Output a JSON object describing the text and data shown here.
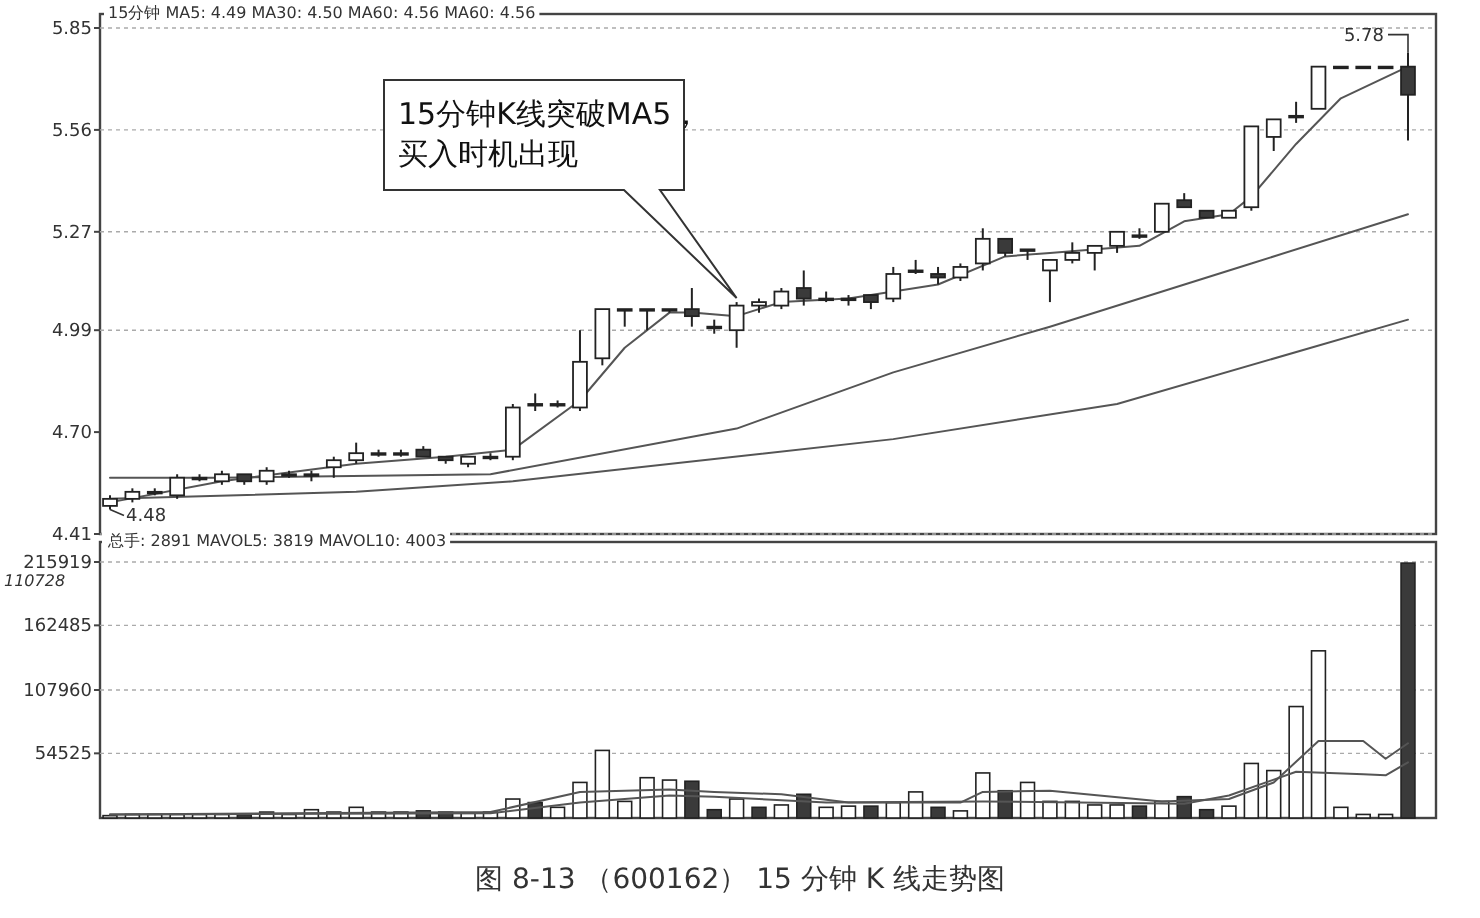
{
  "chart_data": [
    {
      "type": "candlestick",
      "categories": [
        null,
        null,
        null,
        null,
        null,
        null,
        null,
        null,
        null,
        null,
        null,
        null,
        null,
        null,
        null,
        null,
        null,
        null,
        null,
        null,
        null,
        null,
        null,
        null,
        null,
        null,
        null,
        null,
        null,
        null,
        null,
        null,
        null,
        null,
        null,
        null,
        null,
        null,
        null,
        null,
        null,
        null,
        null,
        null,
        null,
        null,
        null,
        null,
        null,
        null,
        null,
        null,
        null,
        null,
        null,
        null,
        null,
        null,
        null
      ],
      "ohlc": [
        [
          4.49,
          4.52,
          4.48,
          4.51
        ],
        [
          4.51,
          4.54,
          4.5,
          4.53
        ],
        [
          4.53,
          4.54,
          4.52,
          4.53
        ],
        [
          4.52,
          4.58,
          4.51,
          4.57
        ],
        [
          4.57,
          4.58,
          4.56,
          4.57
        ],
        [
          4.56,
          4.59,
          4.55,
          4.58
        ],
        [
          4.58,
          4.58,
          4.55,
          4.56
        ],
        [
          4.56,
          4.6,
          4.55,
          4.59
        ],
        [
          4.58,
          4.59,
          4.57,
          4.58
        ],
        [
          4.58,
          4.59,
          4.56,
          4.58
        ],
        [
          4.6,
          4.63,
          4.57,
          4.62
        ],
        [
          4.62,
          4.67,
          4.61,
          4.64
        ],
        [
          4.64,
          4.65,
          4.63,
          4.64
        ],
        [
          4.64,
          4.65,
          4.63,
          4.64
        ],
        [
          4.65,
          4.66,
          4.63,
          4.63
        ],
        [
          4.63,
          4.63,
          4.61,
          4.62
        ],
        [
          4.61,
          4.63,
          4.6,
          4.63
        ],
        [
          4.63,
          4.64,
          4.62,
          4.63
        ],
        [
          4.63,
          4.78,
          4.62,
          4.77
        ],
        [
          4.78,
          4.81,
          4.76,
          4.78
        ],
        [
          4.78,
          4.79,
          4.77,
          4.78
        ],
        [
          4.77,
          4.99,
          4.76,
          4.9
        ],
        [
          4.91,
          5.05,
          4.89,
          5.05
        ],
        [
          5.05,
          5.05,
          5.0,
          5.05
        ],
        [
          5.05,
          5.05,
          4.99,
          5.05
        ],
        [
          5.05,
          5.05,
          5.04,
          5.05
        ],
        [
          5.05,
          5.11,
          5.0,
          5.03
        ],
        [
          5.0,
          5.02,
          4.98,
          5.0
        ],
        [
          4.99,
          5.07,
          4.94,
          5.06
        ],
        [
          5.06,
          5.08,
          5.04,
          5.07
        ],
        [
          5.06,
          5.11,
          5.05,
          5.1
        ],
        [
          5.11,
          5.16,
          5.06,
          5.08
        ],
        [
          5.08,
          5.1,
          5.07,
          5.08
        ],
        [
          5.08,
          5.09,
          5.06,
          5.08
        ],
        [
          5.09,
          5.09,
          5.05,
          5.07
        ],
        [
          5.08,
          5.17,
          5.07,
          5.15
        ],
        [
          5.16,
          5.19,
          5.15,
          5.16
        ],
        [
          5.15,
          5.17,
          5.12,
          5.14
        ],
        [
          5.14,
          5.18,
          5.13,
          5.17
        ],
        [
          5.18,
          5.28,
          5.16,
          5.25
        ],
        [
          5.25,
          5.25,
          5.2,
          5.21
        ],
        [
          5.22,
          5.22,
          5.19,
          5.22
        ],
        [
          5.16,
          5.19,
          5.07,
          5.19
        ],
        [
          5.19,
          5.24,
          5.18,
          5.21
        ],
        [
          5.21,
          5.23,
          5.16,
          5.23
        ],
        [
          5.23,
          5.27,
          5.21,
          5.27
        ],
        [
          5.26,
          5.28,
          5.25,
          5.26
        ],
        [
          5.27,
          5.35,
          5.27,
          5.35
        ],
        [
          5.36,
          5.38,
          5.34,
          5.34
        ],
        [
          5.33,
          5.33,
          5.31,
          5.31
        ],
        [
          5.31,
          5.33,
          5.31,
          5.33
        ],
        [
          5.34,
          5.57,
          5.33,
          5.57
        ],
        [
          5.54,
          5.59,
          5.5,
          5.59
        ],
        [
          5.6,
          5.64,
          5.58,
          5.6
        ],
        [
          5.62,
          5.74,
          5.62,
          5.74
        ],
        [
          5.74,
          5.74,
          5.74,
          5.74
        ],
        [
          5.74,
          5.74,
          5.74,
          5.74
        ],
        [
          5.74,
          5.74,
          5.74,
          5.74
        ],
        [
          5.74,
          5.78,
          5.53,
          5.66
        ]
      ],
      "series": [
        {
          "type": "line",
          "color": "#555555",
          "values": [
            4.5,
            null,
            null,
            null,
            null,
            4.56,
            null,
            null,
            null,
            null,
            null,
            4.61,
            null,
            null,
            null,
            4.63,
            null,
            null,
            4.65,
            null,
            null,
            4.79,
            null,
            4.94,
            null,
            5.04,
            5.04,
            null,
            5.03,
            null,
            5.07,
            null,
            null,
            5.08,
            null,
            null,
            null,
            5.12,
            null,
            null,
            5.2,
            null,
            5.21,
            null,
            null,
            null,
            5.23,
            null,
            5.3,
            null,
            5.32,
            5.37,
            null,
            5.52,
            null,
            5.65,
            null,
            null,
            5.74
          ]
        },
        {
          "type": "line",
          "color": "#555555",
          "values": [
            4.57,
            null,
            null,
            null,
            null,
            4.57,
            null,
            null,
            null,
            null,
            null,
            null,
            null,
            null,
            null,
            null,
            null,
            4.58,
            null,
            null,
            null,
            null,
            null,
            null,
            null,
            null,
            null,
            null,
            4.71,
            null,
            null,
            null,
            null,
            null,
            null,
            4.87,
            null,
            null,
            null,
            null,
            null,
            null,
            5.0,
            null,
            null,
            null,
            null,
            null,
            null,
            null,
            null,
            5.18,
            null,
            null,
            null,
            null,
            null,
            null,
            5.32
          ]
        },
        {
          "type": "line",
          "color": "#555555",
          "values": [
            4.51,
            null,
            null,
            null,
            null,
            null,
            null,
            null,
            null,
            null,
            null,
            4.53,
            null,
            null,
            null,
            null,
            null,
            null,
            4.56,
            null,
            null,
            null,
            null,
            null,
            null,
            null,
            null,
            null,
            null,
            null,
            null,
            null,
            null,
            null,
            null,
            4.68,
            null,
            null,
            null,
            null,
            null,
            null,
            null,
            null,
            null,
            4.78,
            null,
            null,
            null,
            null,
            null,
            null,
            null,
            null,
            null,
            null,
            null,
            null,
            5.02
          ]
        }
      ],
      "ylim": [
        4.41,
        5.85
      ],
      "yticks": [
        4.41,
        {
          "value": 4.7,
          "label": "4.70"
        },
        4.99,
        5.27,
        5.56,
        5.85
      ],
      "grid": "y",
      "tick_labels": "y",
      "annotations": [
        "15分钟 MA5: 4.49 MA30: 4.50 MA60: 4.56 MA60: 4.56",
        "15分钟K线突破MA5，买入时机出现",
        "5.78",
        "4.48"
      ]
    },
    {
      "type": "bar",
      "categories": [
        null,
        null,
        null,
        null,
        null,
        null,
        null,
        null,
        null,
        null,
        null,
        null,
        null,
        null,
        null,
        null,
        null,
        null,
        null,
        null,
        null,
        null,
        null,
        null,
        null,
        null,
        null,
        null,
        null,
        null,
        null,
        null,
        null,
        null,
        null,
        null,
        null,
        null,
        null,
        null,
        null,
        null,
        null,
        null,
        null,
        null,
        null,
        null,
        null,
        null,
        null,
        null,
        null,
        null,
        null,
        null,
        null,
        null,
        null
      ],
      "series": [
        {
          "type": "bar",
          "values": [
            2000,
            3000,
            3000,
            3000,
            3000,
            3000,
            3000,
            5000,
            3000,
            7000,
            5000,
            9000,
            5000,
            5000,
            6000,
            5000,
            4000,
            5000,
            16000,
            13000,
            9000,
            30000,
            57000,
            14000,
            34000,
            32000,
            31000,
            7000,
            16000,
            9000,
            11000,
            20000,
            9000,
            10000,
            10000,
            13000,
            22000,
            9000,
            6000,
            38000,
            23000,
            30000,
            14000,
            14000,
            11000,
            11000,
            10000,
            14000,
            18000,
            7000,
            10000,
            46000,
            40000,
            94000,
            141000,
            9000,
            3000,
            3000,
            215000
          ],
          "colors": [
            "#ffffff",
            "#ffffff",
            "#ffffff",
            "#ffffff",
            "#ffffff",
            "#ffffff",
            "#3a3a3a",
            "#ffffff",
            "#ffffff",
            "#ffffff",
            "#ffffff",
            "#ffffff",
            "#ffffff",
            "#ffffff",
            "#3a3a3a",
            "#3a3a3a",
            "#ffffff",
            "#ffffff",
            "#ffffff",
            "#3a3a3a",
            "#ffffff",
            "#ffffff",
            "#ffffff",
            "#ffffff",
            "#ffffff",
            "#ffffff",
            "#3a3a3a",
            "#3a3a3a",
            "#ffffff",
            "#3a3a3a",
            "#ffffff",
            "#3a3a3a",
            "#ffffff",
            "#ffffff",
            "#3a3a3a",
            "#ffffff",
            "#ffffff",
            "#3a3a3a",
            "#ffffff",
            "#ffffff",
            "#3a3a3a",
            "#ffffff",
            "#ffffff",
            "#ffffff",
            "#ffffff",
            "#ffffff",
            "#3a3a3a",
            "#ffffff",
            "#3a3a3a",
            "#3a3a3a",
            "#ffffff",
            "#ffffff",
            "#ffffff",
            "#ffffff",
            "#ffffff",
            "#ffffff",
            "#ffffff",
            "#ffffff",
            "#3a3a3a"
          ]
        },
        {
          "type": "line",
          "color": "#555555",
          "values": [
            3000,
            null,
            null,
            null,
            null,
            null,
            null,
            null,
            null,
            null,
            null,
            null,
            null,
            null,
            null,
            null,
            null,
            5000,
            null,
            null,
            null,
            22000,
            null,
            null,
            null,
            24000,
            null,
            22000,
            null,
            null,
            20000,
            null,
            null,
            13000,
            null,
            null,
            null,
            null,
            13000,
            22000,
            null,
            null,
            23000,
            null,
            null,
            null,
            null,
            14000,
            null,
            null,
            16000,
            null,
            30000,
            null,
            65000,
            null,
            65000,
            50000,
            63000
          ]
        },
        {
          "type": "line",
          "color": "#555555",
          "values": [
            3000,
            null,
            null,
            null,
            null,
            null,
            null,
            null,
            null,
            null,
            null,
            null,
            null,
            null,
            null,
            null,
            null,
            4000,
            null,
            null,
            null,
            13000,
            null,
            null,
            null,
            19000,
            null,
            18000,
            null,
            null,
            null,
            null,
            13000,
            null,
            null,
            null,
            null,
            null,
            null,
            14000,
            null,
            null,
            null,
            null,
            null,
            null,
            null,
            null,
            12000,
            null,
            19000,
            null,
            null,
            39000,
            null,
            null,
            37000,
            36000,
            47000
          ]
        }
      ],
      "ylim": [
        0,
        215919
      ],
      "yticks": [
        54525,
        107960,
        162485,
        215919
      ],
      "grid": "y",
      "tick_labels": "y",
      "annotations": [
        "总手: 2891 MAVOL5: 3819 MAVOL10: 4003",
        "110728",
        "图 8-13 （600162） 15 分钟 K 线走势图"
      ]
    }
  ]
}
